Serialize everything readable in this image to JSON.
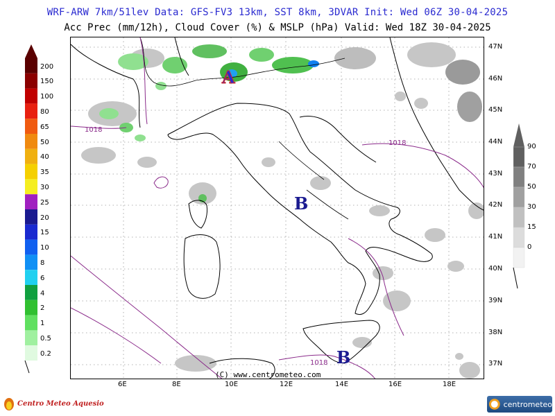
{
  "header": {
    "line1": "WRF-ARW 7km/51lev  Data: GFS-FV3 13km, SST 8km, 3DVAR  Init: Wed 06Z 30-04-2025",
    "line2": "Acc Prec (mm/12h), Cloud Cover (%) & MSLP (hPa)  Valid: Wed 18Z 30-04-2025"
  },
  "map": {
    "lat_labels": [
      "47N",
      "46N",
      "45N",
      "44N",
      "43N",
      "42N",
      "41N",
      "40N",
      "39N",
      "38N",
      "37N"
    ],
    "lon_labels": [
      "6E",
      "8E",
      "10E",
      "12E",
      "14E",
      "16E",
      "18E"
    ],
    "pressure_centers": [
      {
        "symbol": "A",
        "type": "high"
      },
      {
        "symbol": "B",
        "type": "low"
      },
      {
        "symbol": "B",
        "type": "low"
      }
    ],
    "isobar_labels": [
      "1018",
      "1018",
      "1018"
    ],
    "copyright": "(C) www.centrometeo.com"
  },
  "precip_legend": {
    "levels": [
      "200",
      "150",
      "100",
      "80",
      "65",
      "50",
      "40",
      "35",
      "30",
      "25",
      "20",
      "15",
      "10",
      "8",
      "6",
      "4",
      "2",
      "1",
      "0.5",
      "0.2"
    ],
    "colors": [
      "#5a0000",
      "#8b0000",
      "#c00000",
      "#e82010",
      "#f05a10",
      "#f08a10",
      "#f0b010",
      "#f5d000",
      "#f5ee20",
      "#a020c0",
      "#1a1a90",
      "#1a2ad0",
      "#1060f0",
      "#1090f5",
      "#20d0f0",
      "#10a040",
      "#30c030",
      "#60e060",
      "#a0f0a0",
      "#e0fae0"
    ]
  },
  "cloud_legend": {
    "levels": [
      "90",
      "70",
      "50",
      "30",
      "15",
      "0"
    ],
    "colors": [
      "#606060",
      "#808080",
      "#a0a0a0",
      "#c0c0c0",
      "#dcdcdc",
      "#f2f2f2"
    ]
  },
  "logos": {
    "left": "Centro Meteo Aquesio",
    "right": "centrometeo"
  }
}
